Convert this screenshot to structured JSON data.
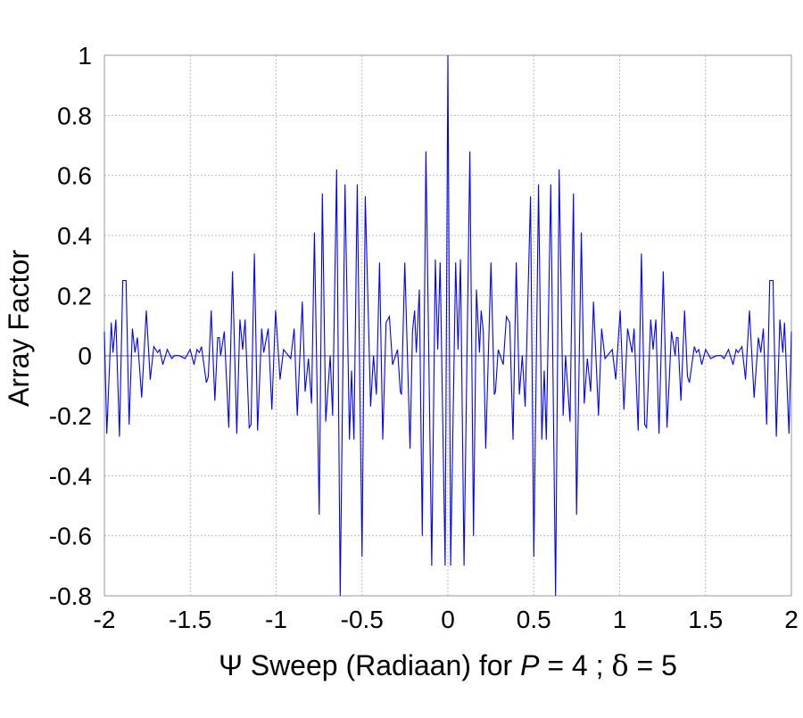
{
  "chart_data": {
    "type": "line",
    "title": "",
    "xlabel_parts": {
      "prefix": "Ψ Sweep (Radiaan) for ",
      "var_p": "P",
      "mid": " = 4 ; ",
      "var_d": "δ",
      "suffix": " = 5"
    },
    "ylabel": "Array Factor",
    "xlim": [
      -2,
      2
    ],
    "ylim": [
      -0.8,
      1
    ],
    "xticks": [
      -2,
      -1.5,
      -1,
      -0.5,
      0,
      0.5,
      1,
      1.5,
      2
    ],
    "xtick_labels": [
      "-2",
      "-1.5",
      "-1",
      "-0.5",
      "0",
      "0.5",
      "1",
      "1.5",
      "2"
    ],
    "yticks": [
      1,
      0.8,
      0.6,
      0.4,
      0.2,
      0,
      -0.2,
      -0.4,
      -0.6,
      -0.8
    ],
    "ytick_labels": [
      "1",
      "0.8",
      "0.6",
      "0.4",
      "0.2",
      "0",
      "-0.2",
      "-0.4",
      "-0.6",
      "-0.8"
    ],
    "grid": true,
    "line_color": "#0000ff",
    "symmetric_about_zero": true,
    "series": [
      {
        "name": "Array Factor",
        "x_nonnegative": [
          0,
          0.016,
          0.045,
          0.059,
          0.073,
          0.094,
          0.128,
          0.149,
          0.166,
          0.184,
          0.194,
          0.206,
          0.22,
          0.251,
          0.27,
          0.277,
          0.293,
          0.322,
          0.341,
          0.36,
          0.379,
          0.398,
          0.416,
          0.433,
          0.45,
          0.481,
          0.5,
          0.528,
          0.547,
          0.561,
          0.573,
          0.599,
          0.627,
          0.648,
          0.671,
          0.685,
          0.711,
          0.731,
          0.749,
          0.777,
          0.794,
          0.812,
          0.831,
          0.848,
          0.877,
          0.895,
          0.915,
          0.957,
          0.977,
          1.003,
          1.025,
          1.046,
          1.072,
          1.084,
          1.108,
          1.127,
          1.146,
          1.157,
          1.181,
          1.195,
          1.211,
          1.229,
          1.254,
          1.276,
          1.302,
          1.323,
          1.331,
          1.34,
          1.357,
          1.378,
          1.395,
          1.406,
          1.435,
          1.447,
          1.461,
          1.478,
          1.501,
          1.53,
          1.565,
          1.591,
          1.608,
          1.634,
          1.66,
          1.678,
          1.69,
          1.712,
          1.733,
          1.756,
          1.783,
          1.808,
          1.822,
          1.837,
          1.856,
          1.874,
          1.893,
          1.912,
          1.933,
          1.95,
          1.96,
          1.986,
          2.0
        ],
        "y_nonnegative": [
          1.0,
          -0.7,
          0.31,
          0.02,
          0.32,
          -0.7,
          0.68,
          -0.6,
          0.22,
          0.01,
          0.15,
          0.08,
          -0.31,
          0.31,
          -0.13,
          -0.12,
          0.02,
          -0.03,
          0.13,
          0.11,
          -0.28,
          0.31,
          -0.13,
          0.0,
          -0.17,
          0.53,
          -0.67,
          0.57,
          -0.28,
          -0.05,
          -0.28,
          0.57,
          -0.8,
          0.62,
          -0.2,
          0.0,
          -0.22,
          0.54,
          -0.53,
          0.41,
          -0.16,
          -0.01,
          -0.12,
          0.18,
          -0.2,
          0.09,
          -0.01,
          0.02,
          -0.08,
          0.15,
          -0.18,
          0.09,
          0.01,
          0.09,
          -0.25,
          0.34,
          -0.23,
          -0.24,
          0.12,
          0.02,
          0.12,
          -0.26,
          0.28,
          -0.24,
          0.08,
          0.0,
          0.06,
          0.06,
          -0.15,
          0.15,
          -0.07,
          -0.09,
          0.03,
          0.01,
          0.02,
          -0.03,
          0.02,
          -0.01,
          0.0,
          0.0,
          -0.01,
          0.02,
          -0.03,
          0.02,
          0.01,
          0.03,
          -0.08,
          0.15,
          -0.14,
          0.06,
          0.01,
          0.09,
          -0.23,
          0.25,
          0.25,
          -0.27,
          0.12,
          0.01,
          0.11,
          -0.26,
          0.08
        ]
      }
    ]
  }
}
